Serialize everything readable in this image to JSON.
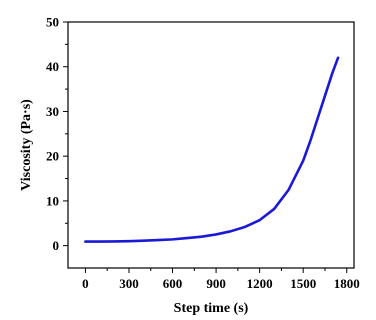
{
  "chart_data": {
    "type": "line",
    "xlabel": "Step time (s)",
    "ylabel": "Viscosity (Pa·s)",
    "xlim": [
      -120,
      1850
    ],
    "ylim": [
      -5,
      50
    ],
    "xticks": [
      0,
      300,
      600,
      900,
      1200,
      1500,
      1800
    ],
    "yticks": [
      0,
      10,
      20,
      30,
      40,
      50
    ],
    "xtick_labels": [
      "0",
      "300",
      "600",
      "900",
      "1200",
      "1500",
      "1800"
    ],
    "ytick_labels": [
      "0",
      "10",
      "20",
      "30",
      "40",
      "50"
    ],
    "grid": false,
    "legend": "none",
    "series": [
      {
        "color": "#1a1ad6",
        "x": [
          0,
          100,
          200,
          300,
          400,
          500,
          600,
          700,
          800,
          900,
          1000,
          1100,
          1200,
          1300,
          1400,
          1500,
          1550,
          1600,
          1650,
          1700,
          1740
        ],
        "y": [
          0.9,
          0.9,
          0.95,
          1.0,
          1.1,
          1.25,
          1.4,
          1.7,
          2.0,
          2.5,
          3.2,
          4.2,
          5.7,
          8.2,
          12.5,
          19.0,
          23.5,
          28.5,
          33.5,
          38.5,
          42.0
        ]
      }
    ]
  }
}
